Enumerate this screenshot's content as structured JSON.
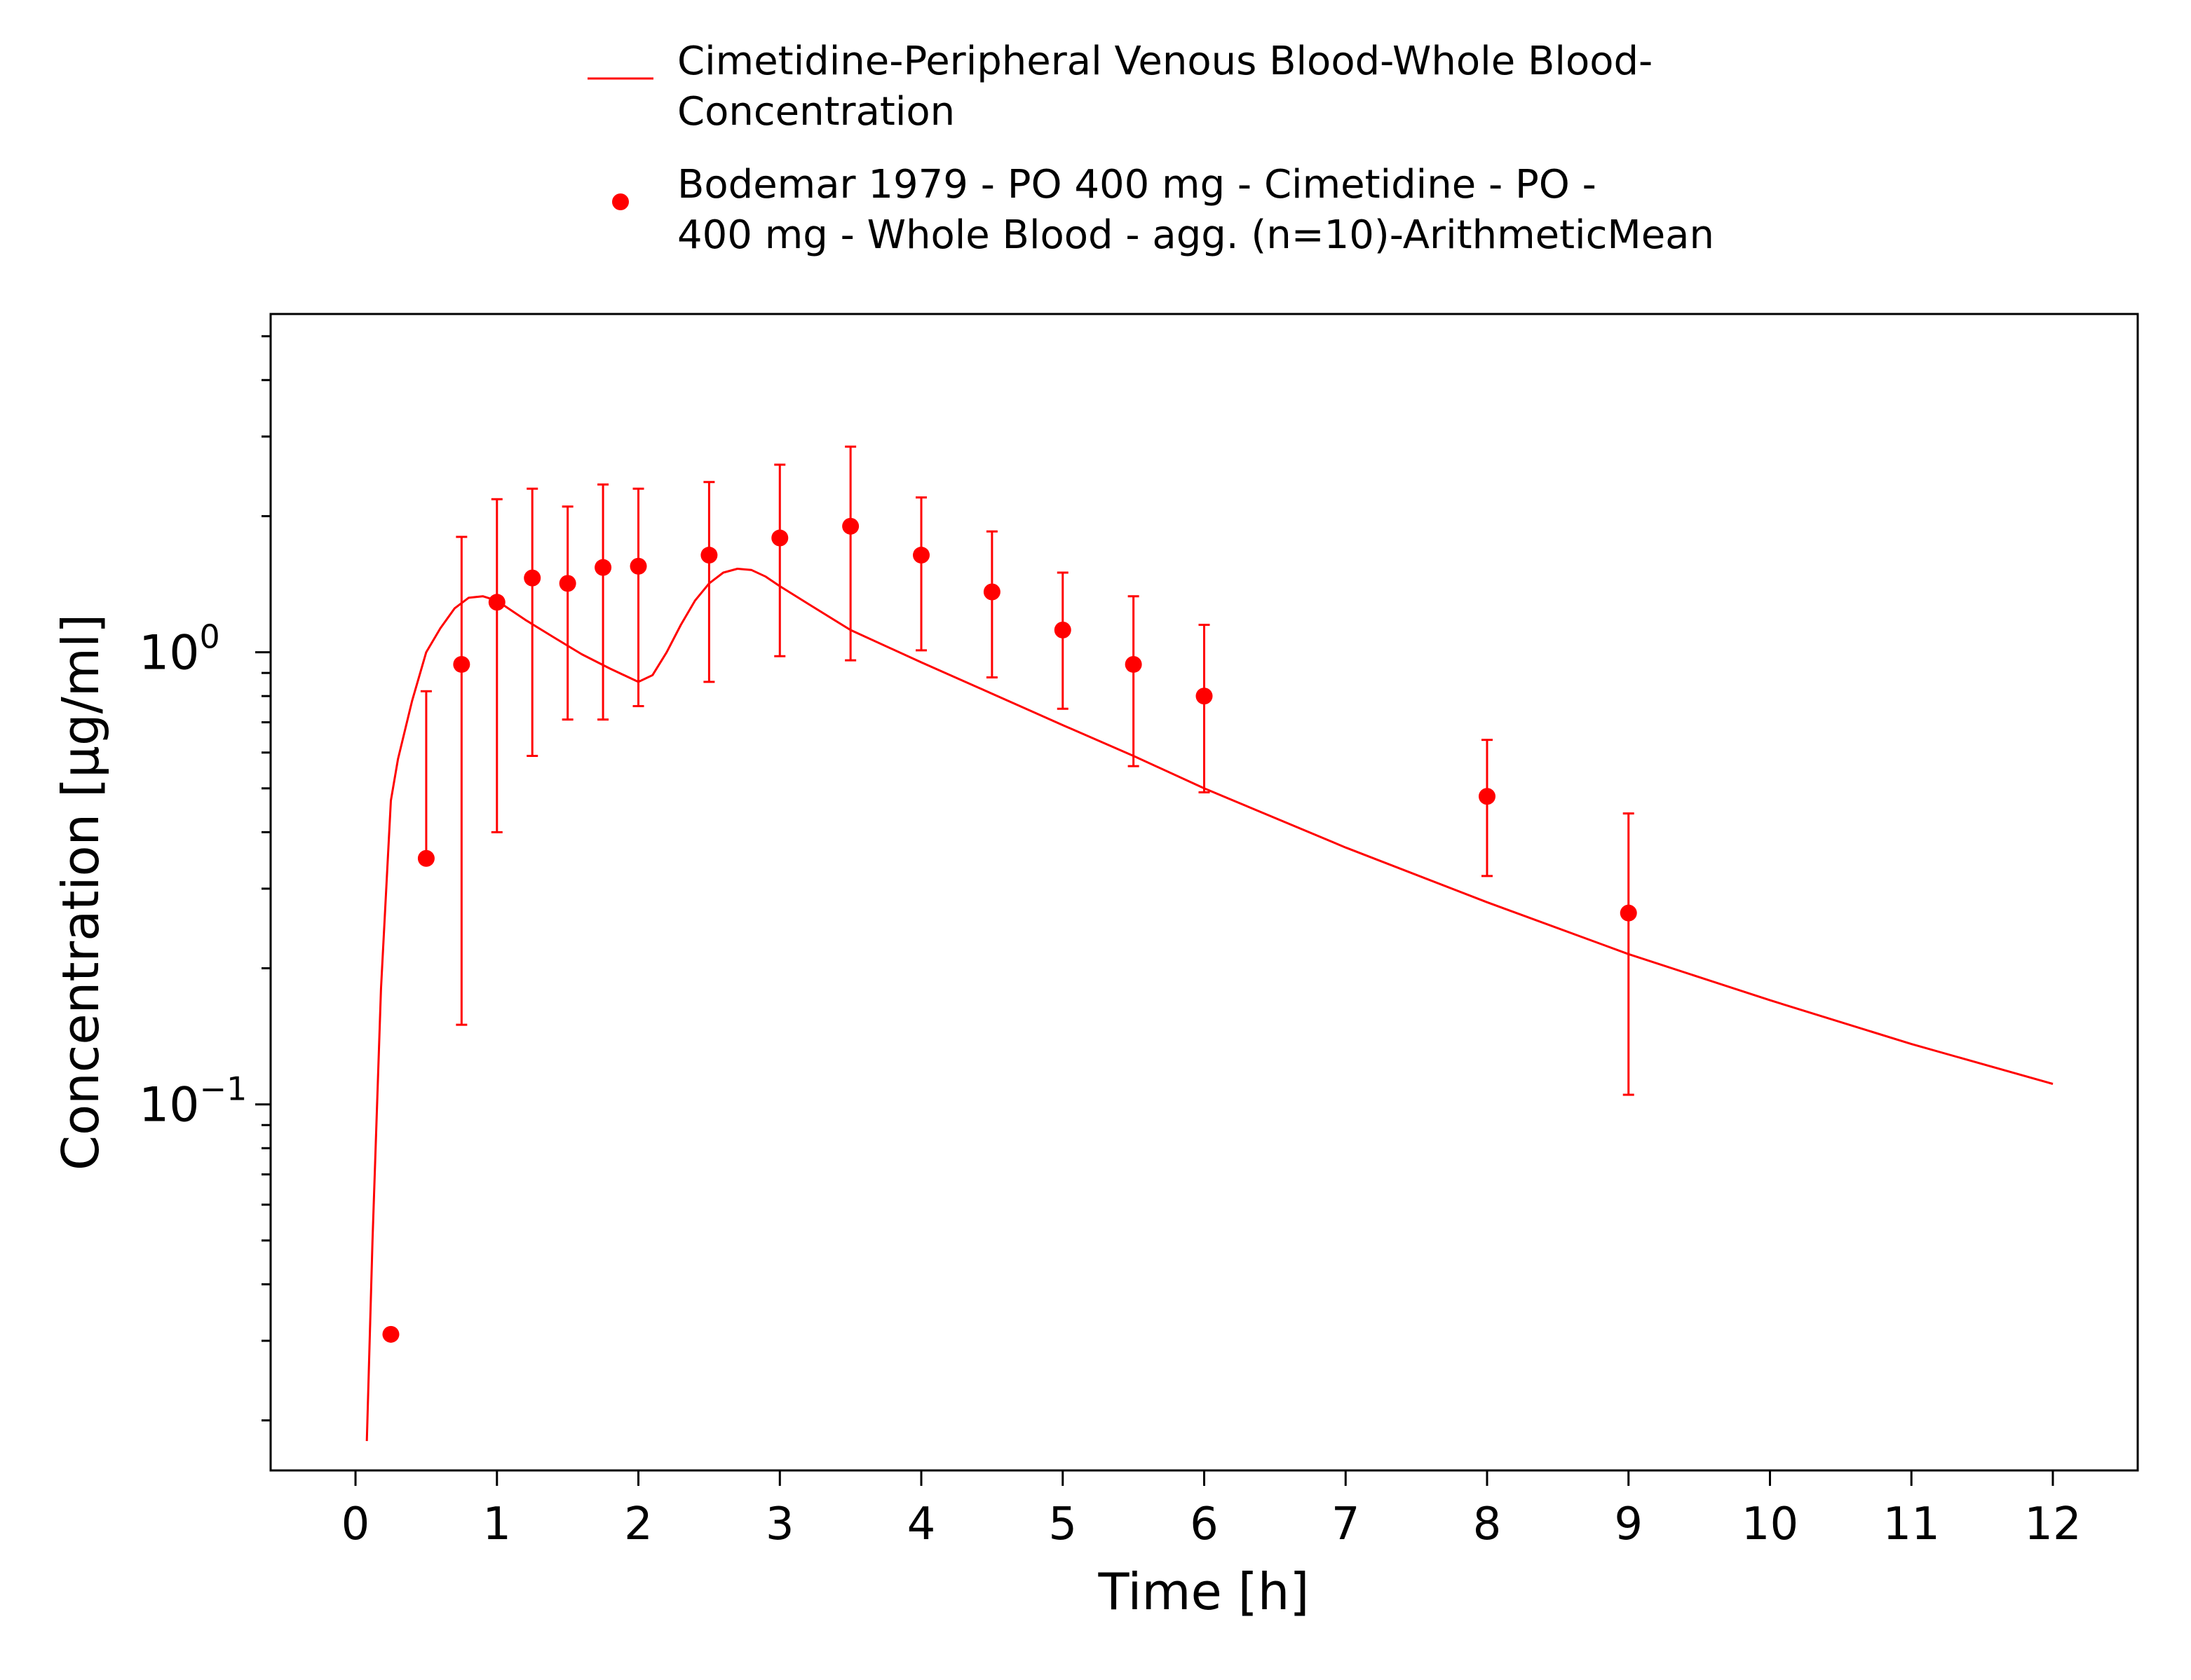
{
  "chart_data": {
    "type": "scatter",
    "xlabel": "Time [h]",
    "ylabel": "Concentration [µg/ml]",
    "xlim": [
      -0.6,
      12.6
    ],
    "ylim": [
      0.0155,
      5.6
    ],
    "yscale": "log",
    "grid": false,
    "legend_position": "top-center",
    "x_ticks": [
      0,
      1,
      2,
      3,
      4,
      5,
      6,
      7,
      8,
      9,
      10,
      11,
      12
    ],
    "x_tick_labels": [
      "0",
      "1",
      "2",
      "3",
      "4",
      "5",
      "6",
      "7",
      "8",
      "9",
      "10",
      "11",
      "12"
    ],
    "y_major_ticks": [
      0.1,
      1
    ],
    "y_tick_labels": [
      {
        "value": 1,
        "base": "10",
        "exp": "0"
      },
      {
        "value": 0.1,
        "base": "10",
        "exp": "−1"
      }
    ],
    "y_minor_ticks": [
      0.02,
      0.03,
      0.04,
      0.05,
      0.06,
      0.07,
      0.08,
      0.09,
      0.2,
      0.3,
      0.4,
      0.5,
      0.6,
      0.7,
      0.8,
      0.9,
      2,
      3,
      4,
      5
    ],
    "color": "#ff0000",
    "series": [
      {
        "name": "Cimetidine-Peripheral Venous Blood-Whole Blood-Concentration",
        "legend_lines": [
          "Cimetidine-Peripheral Venous Blood-Whole Blood-",
          "Concentration"
        ],
        "kind": "line",
        "x": [
          0.08,
          0.12,
          0.18,
          0.25,
          0.3,
          0.4,
          0.5,
          0.6,
          0.7,
          0.8,
          0.9,
          1.0,
          1.2,
          1.4,
          1.6,
          1.8,
          2.0,
          2.1,
          2.2,
          2.3,
          2.4,
          2.5,
          2.6,
          2.7,
          2.8,
          2.9,
          3.0,
          3.2,
          3.5,
          4.0,
          4.5,
          5.0,
          5.5,
          6.0,
          7.0,
          8.0,
          9.0,
          10.0,
          11.0,
          12.0
        ],
        "y": [
          0.018,
          0.05,
          0.18,
          0.47,
          0.58,
          0.78,
          1.0,
          1.13,
          1.25,
          1.32,
          1.33,
          1.3,
          1.18,
          1.08,
          0.99,
          0.92,
          0.86,
          0.89,
          1.0,
          1.15,
          1.3,
          1.42,
          1.5,
          1.53,
          1.52,
          1.47,
          1.4,
          1.28,
          1.12,
          0.95,
          0.81,
          0.69,
          0.59,
          0.5,
          0.37,
          0.28,
          0.215,
          0.17,
          0.136,
          0.111
        ]
      },
      {
        "name": "Bodemar 1979 - PO 400 mg - Cimetidine - PO - 400 mg - Whole Blood - agg. (n=10)-ArithmeticMean",
        "legend_lines": [
          "Bodemar 1979 - PO 400 mg - Cimetidine - PO -",
          "400 mg - Whole Blood - agg. (n=10)-ArithmeticMean"
        ],
        "kind": "scatter",
        "x": [
          0.25,
          0.5,
          0.75,
          1.0,
          1.25,
          1.5,
          1.75,
          2.0,
          2.5,
          3.0,
          3.5,
          4.0,
          4.5,
          5.0,
          5.5,
          6.0,
          8.0,
          9.0
        ],
        "y": [
          0.031,
          0.35,
          0.94,
          1.29,
          1.46,
          1.42,
          1.54,
          1.55,
          1.64,
          1.79,
          1.9,
          1.64,
          1.36,
          1.12,
          0.94,
          0.8,
          0.48,
          0.265
        ],
        "y_upper": [
          null,
          0.82,
          1.8,
          2.18,
          2.3,
          2.1,
          2.35,
          2.3,
          2.38,
          2.6,
          2.85,
          2.2,
          1.85,
          1.5,
          1.33,
          1.15,
          0.64,
          0.44
        ],
        "y_lower": [
          null,
          null,
          0.15,
          0.4,
          0.59,
          0.71,
          0.71,
          0.76,
          0.86,
          0.98,
          0.96,
          1.01,
          0.88,
          0.75,
          0.56,
          0.49,
          0.32,
          0.105
        ]
      }
    ]
  }
}
